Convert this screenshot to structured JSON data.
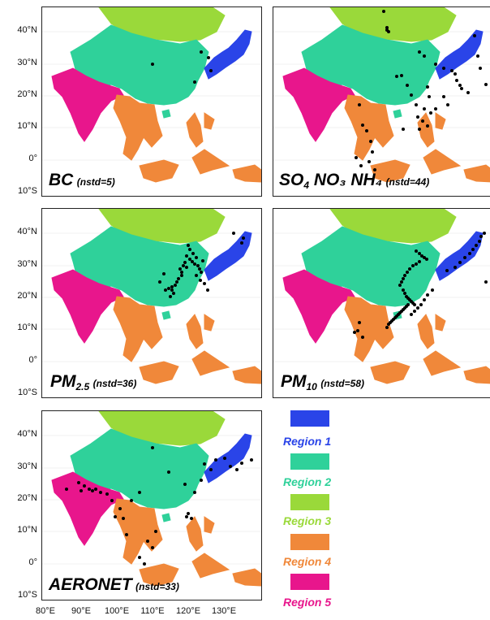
{
  "lat_ticks": [
    "40°N",
    "30°N",
    "20°N",
    "10°N",
    "0°",
    "10°S"
  ],
  "lon_ticks": [
    "80°E",
    "90°E",
    "100°E",
    "110°E",
    "120°E",
    "130°E"
  ],
  "panels": [
    {
      "main": "BC",
      "sub": "",
      "rest": "",
      "note": "(nstd=5)"
    },
    {
      "main": "SO",
      "sub": "4",
      "rest": " NO₃ NH₄",
      "note": "(nstd=44)"
    },
    {
      "main": "PM",
      "sub": "2.5",
      "rest": "",
      "note": "(nstd=36)"
    },
    {
      "main": "PM",
      "sub": "10",
      "rest": "",
      "note": "(nstd=58)"
    },
    {
      "main": "AERONET",
      "sub": "",
      "rest": "",
      "note": "(nstd=33)"
    }
  ],
  "regions": [
    {
      "label": "Region 1",
      "color": "#2a44e8"
    },
    {
      "label": "Region 2",
      "color": "#2fd19a"
    },
    {
      "label": "Region 3",
      "color": "#9ad93a"
    },
    {
      "label": "Region 4",
      "color": "#f0883a"
    },
    {
      "label": "Region 5",
      "color": "#e8168c"
    }
  ],
  "station_counts": [
    5,
    44,
    36,
    58,
    33
  ],
  "map_extent": {
    "lon": [
      78,
      138
    ],
    "lat": [
      -11,
      46
    ]
  }
}
